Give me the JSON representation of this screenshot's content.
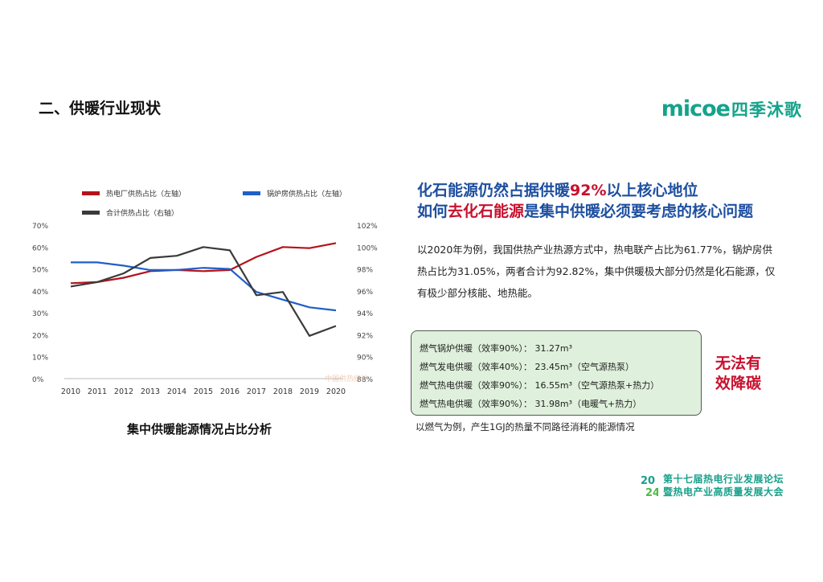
{
  "section_title": "二、供暖行业现状",
  "logo": {
    "latin": "micoe",
    "cn": "四季沐歌"
  },
  "headline": {
    "line1_a": "化石能源仍然占据供暖",
    "line1_hl": "92%",
    "line1_b": "以上核心地位",
    "line2_a": "如何",
    "line2_hl": "去化石能源",
    "line2_b": "是集中供暖必须要考虑的核心问题"
  },
  "paragraph": "以2020年为例，我国供热产业热源方式中，热电联产占比为61.77%，锅炉房供热占比为31.05%，两者合计为92.82%，集中供暖极大部分仍然是化石能源，仅有极少部分核能、地热能。",
  "gas_box": {
    "rows": [
      "燃气锅炉供暖（效率90%）：  31.27m³",
      "燃气发电供暖（效率40%）：  23.45m³（空气源热泵）",
      "燃气热电供暖（效率90%）：  16.55m³（空气源热泵+热力）",
      "燃气热电供暖（效率90%）：  31.98m³（电暖气+热力）"
    ]
  },
  "verdict": {
    "line1": "无法有",
    "line2": "效降碳"
  },
  "gas_caption": "以燃气为例，产生1GJ的热量不同路径消耗的能源情况",
  "chart_caption": "集中供暖能源情况占比分析",
  "forum": {
    "line1": "第十七届热电行业发展论坛",
    "line2": "暨热电产业高质量发展大会",
    "year_top": "20",
    "year_bottom": "24"
  },
  "colors": {
    "red_series": "#b5121b",
    "blue_series": "#1f5fc8",
    "dark_series": "#3a3a3a",
    "accent": "#14a38b"
  },
  "chart_data": {
    "type": "line",
    "x": [
      "2010",
      "2011",
      "2012",
      "2013",
      "2014",
      "2015",
      "2016",
      "2017",
      "2018",
      "2019",
      "2020"
    ],
    "y_left": {
      "ylim": [
        0,
        70
      ],
      "ticks": [
        "0%",
        "10%",
        "20%",
        "30%",
        "40%",
        "50%",
        "60%",
        "70%"
      ]
    },
    "y_right": {
      "ylim": [
        88,
        102
      ],
      "ticks": [
        "88%",
        "90%",
        "92%",
        "94%",
        "96%",
        "98%",
        "100%",
        "102%"
      ]
    },
    "legend": [
      "热电厂供热占比（左轴）",
      "锅炉房供热占比（左轴）",
      "合计供热占比（右轴）"
    ],
    "series": [
      {
        "name": "热电厂供热占比（左轴）",
        "axis": "left",
        "color": "#b5121b",
        "values": [
          43.5,
          44,
          46,
          49,
          49.5,
          49,
          49.5,
          55.5,
          60,
          59.5,
          61.8
        ]
      },
      {
        "name": "锅炉房供热占比（左轴）",
        "axis": "left",
        "color": "#1f5fc8",
        "values": [
          53,
          53,
          51.5,
          49.5,
          49.5,
          50.5,
          50,
          39.5,
          36,
          32.5,
          31.1
        ]
      },
      {
        "name": "合计供热占比（右轴）",
        "axis": "right",
        "color": "#3a3a3a",
        "values": [
          96.4,
          96.8,
          97.6,
          99.0,
          99.2,
          100.0,
          99.7,
          95.6,
          95.9,
          91.9,
          92.8
        ]
      }
    ],
    "watermark": "中国供热统计"
  }
}
